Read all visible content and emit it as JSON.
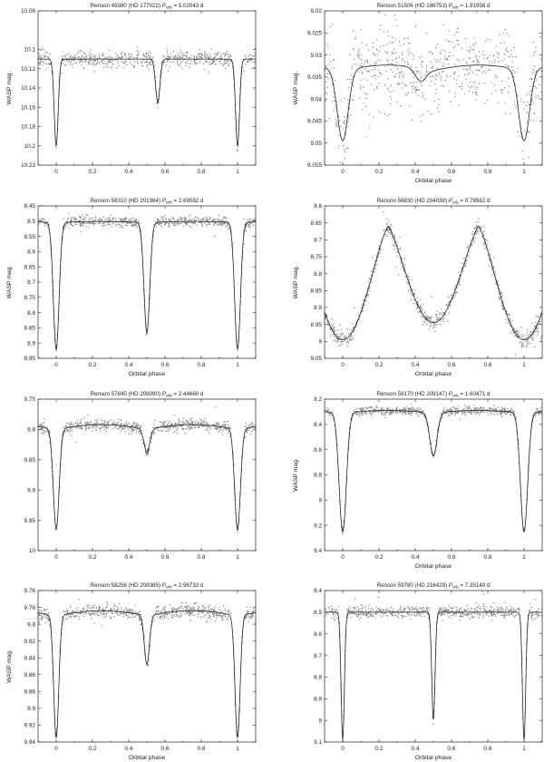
{
  "chart_data": [
    {
      "type": "scatter",
      "title": "Renson 49380 (HD 177022) P_orb = 5.02043 d",
      "title_main": "Renson 49380 (HD 177022) ",
      "title_p": "P",
      "title_sub": "orb",
      "title_val": " = 5.02043 d",
      "xlabel": "",
      "ylabel": "WASP mag.",
      "xlim": [
        -0.1,
        1.1
      ],
      "ylim": [
        10.06,
        10.22
      ],
      "y_inverted": true,
      "xticks": [
        "0",
        "0.2",
        "0.4",
        "0.6",
        "0.8",
        "1"
      ],
      "yticks": [
        "10.06",
        "10.1",
        "10.12",
        "10.14",
        "10.16",
        "10.18",
        "10.2",
        "10.22"
      ],
      "ytick_values": [
        10.06,
        10.1,
        10.12,
        10.14,
        10.16,
        10.18,
        10.2,
        10.22
      ],
      "model": {
        "base": 10.11,
        "eclipses": [
          [
            0,
            10.2,
            0.011
          ],
          [
            0.56,
            10.155,
            0.012
          ],
          [
            1,
            10.2,
            0.011
          ]
        ],
        "variation": [
          0,
          0
        ]
      },
      "noise": 0.004,
      "npoints": 700
    },
    {
      "type": "scatter",
      "title": "Renson 51506 (HD 186753) P_orb = 1.91956 d",
      "title_main": "Renson 51506 (HD 186753) ",
      "title_p": "P",
      "title_sub": "orb",
      "title_val": " = 1.91956 d",
      "xlabel": "Orbital phase",
      "ylabel": "WASP mag.",
      "xlim": [
        -0.1,
        1.1
      ],
      "ylim": [
        9.02,
        9.055
      ],
      "y_inverted": true,
      "xticks": [
        "0",
        "0.2",
        "0.4",
        "0.6",
        "0.8",
        "1"
      ],
      "yticks": [
        "9.02",
        "9.025",
        "9.03",
        "9.035",
        "9.04",
        "9.045",
        "9.05",
        "9.055"
      ],
      "ytick_values": [
        9.02,
        9.025,
        9.03,
        9.035,
        9.04,
        9.045,
        9.05,
        9.055
      ],
      "model": {
        "base": 9.0335,
        "eclipses": [
          [
            0,
            9.0495,
            0.03
          ],
          [
            0.43,
            9.0365,
            0.03
          ],
          [
            1,
            9.0495,
            0.03
          ]
        ],
        "variation": [
          -0.0012,
          0
        ]
      },
      "noise": 0.0045,
      "npoints": 700
    },
    {
      "type": "scatter",
      "title": "Renson 56310 (HD 201964) P_orb = 2.69592 d",
      "title_main": "Renson 56310 (HD 201964) ",
      "title_p": "P",
      "title_sub": "orb",
      "title_val": " = 2.69592 d",
      "xlabel": "Orbital phase",
      "ylabel": "WASP mag.",
      "xlim": [
        -0.1,
        1.1
      ],
      "ylim": [
        8.45,
        8.95
      ],
      "y_inverted": true,
      "xticks": [
        "0",
        "0.2",
        "0.4",
        "0.6",
        "0.8",
        "1"
      ],
      "yticks": [
        "8.45",
        "8.5",
        "8.55",
        "8.6",
        "8.65",
        "8.7",
        "8.75",
        "8.8",
        "8.85",
        "8.9",
        "8.95"
      ],
      "ytick_values": [
        8.45,
        8.5,
        8.55,
        8.6,
        8.65,
        8.7,
        8.75,
        8.8,
        8.85,
        8.9,
        8.95
      ],
      "model": {
        "base": 8.505,
        "eclipses": [
          [
            0,
            8.92,
            0.016
          ],
          [
            0.5,
            8.865,
            0.016
          ],
          [
            1,
            8.92,
            0.016
          ]
        ],
        "variation": [
          -0.004,
          0
        ]
      },
      "noise": 0.008,
      "npoints": 750
    },
    {
      "type": "scatter",
      "title": "Renson 56830 (HD 204038) P_orb = 0.78562 d",
      "title_main": "Renson 56830 (HD 204038) ",
      "title_p": "P",
      "title_sub": "orb",
      "title_val": " = 0.78562 d",
      "xlabel": "Orbital phase",
      "ylabel": "WASP mag.",
      "xlim": [
        -0.1,
        1.1
      ],
      "ylim": [
        8.6,
        9.05
      ],
      "y_inverted": true,
      "xticks": [
        "0",
        "0.2",
        "0.4",
        "0.6",
        "0.8",
        "1"
      ],
      "yticks": [
        "8.6",
        "8.65",
        "8.7",
        "8.75",
        "8.8",
        "8.85",
        "8.9",
        "8.95",
        "9",
        "9.05"
      ],
      "ytick_values": [
        8.6,
        8.65,
        8.7,
        8.75,
        8.8,
        8.85,
        8.9,
        8.95,
        9,
        9.05
      ],
      "model": {
        "base": 8.66,
        "eclipses": [],
        "variation": [
          0,
          0
        ],
        "contact": {
          "min_primary": 8.995,
          "min_secondary": 8.945,
          "max": 8.66
        }
      },
      "noise": 0.012,
      "npoints": 800
    },
    {
      "type": "scatter",
      "title": "Renson 57845 (HD 208090) P_orb = 2.44660 d",
      "title_main": "Renson 57845 (HD 208090) ",
      "title_p": "P",
      "title_sub": "orb",
      "title_val": " = 2.44660 d",
      "xlabel": "",
      "ylabel": "",
      "xlim": [
        -0.1,
        1.1
      ],
      "ylim": [
        9.75,
        10.0
      ],
      "y_inverted": true,
      "xticks": [
        "0",
        "0.2",
        "0.4",
        "0.6",
        "0.8",
        "1"
      ],
      "yticks": [
        "9.75",
        "9.8",
        "9.85",
        "9.9",
        "9.95",
        "10"
      ],
      "ytick_values": [
        9.75,
        9.8,
        9.85,
        9.9,
        9.95,
        10.0
      ],
      "model": {
        "base": 9.8,
        "eclipses": [
          [
            0,
            9.965,
            0.016
          ],
          [
            0.5,
            9.838,
            0.016
          ],
          [
            1,
            9.965,
            0.016
          ]
        ],
        "variation": [
          -0.008,
          0
        ]
      },
      "noise": 0.005,
      "npoints": 750
    },
    {
      "type": "scatter",
      "title": "Renson 58170 (HD 209147) P_orb = 1.60471 d",
      "title_main": "Renson 58170 (HD 209147) ",
      "title_p": "P",
      "title_sub": "orb",
      "title_val": " = 1.60471 d",
      "xlabel": "Orbital phase",
      "ylabel": "WASP mag.",
      "xlim": [
        -0.1,
        1.1
      ],
      "ylim": [
        8.2,
        9.4
      ],
      "y_inverted": true,
      "xticks": [
        "0",
        "0.2",
        "0.4",
        "0.6",
        "0.8",
        "1"
      ],
      "yticks": [
        "8.2",
        "8.4",
        "8.6",
        "8.8",
        "9",
        "9.2",
        "9.4"
      ],
      "ytick_values": [
        8.2,
        8.4,
        8.6,
        8.8,
        9.0,
        9.2,
        9.4
      ],
      "model": {
        "base": 8.31,
        "eclipses": [
          [
            0,
            9.25,
            0.02
          ],
          [
            0.5,
            8.65,
            0.02
          ],
          [
            1,
            9.25,
            0.02
          ]
        ],
        "variation": [
          -0.02,
          0
        ]
      },
      "noise": 0.016,
      "npoints": 750
    },
    {
      "type": "scatter",
      "title": "Renson 58256 (HD 209385) P_orb = 2.96733 d",
      "title_main": "Renson 58256 (HD 209385) ",
      "title_p": "P",
      "title_sub": "orb",
      "title_val": " = 2.96733 d",
      "xlabel": "Orbital phase",
      "ylabel": "WASP mag.",
      "xlim": [
        -0.1,
        1.1
      ],
      "ylim": [
        9.76,
        9.94
      ],
      "y_inverted": true,
      "xticks": [
        "0",
        "0.2",
        "0.4",
        "0.6",
        "0.8",
        "1"
      ],
      "yticks": [
        "9.76",
        "9.78",
        "9.8",
        "9.82",
        "9.84",
        "9.86",
        "9.88",
        "9.9",
        "9.92",
        "9.94"
      ],
      "ytick_values": [
        9.76,
        9.78,
        9.8,
        9.82,
        9.84,
        9.86,
        9.88,
        9.9,
        9.92,
        9.94
      ],
      "model": {
        "base": 9.79,
        "eclipses": [
          [
            0,
            9.935,
            0.014
          ],
          [
            0.5,
            9.848,
            0.014
          ],
          [
            1,
            9.935,
            0.014
          ]
        ],
        "variation": [
          -0.006,
          0
        ]
      },
      "noise": 0.004,
      "npoints": 750
    },
    {
      "type": "scatter",
      "title": "Renson 59780 (HD 216429) P_orb = 7.35140 d",
      "title_main": "Renson 59780 (HD 216429) ",
      "title_p": "P",
      "title_sub": "orb",
      "title_val": " = 7.35140 d",
      "xlabel": "Orbital phase",
      "ylabel": "",
      "xlim": [
        -0.1,
        1.1
      ],
      "ylim": [
        8.4,
        9.1
      ],
      "y_inverted": true,
      "xticks": [
        "0",
        "0.2",
        "0.4",
        "0.6",
        "0.8",
        "1"
      ],
      "yticks": [
        "8.4",
        "8.5",
        "8.6",
        "8.7",
        "8.8",
        "8.9",
        "9",
        "9.1"
      ],
      "ytick_values": [
        8.4,
        8.5,
        8.6,
        8.7,
        8.8,
        8.9,
        9.0,
        9.1
      ],
      "model": {
        "base": 8.5,
        "eclipses": [
          [
            0,
            9.09,
            0.009
          ],
          [
            0.5,
            8.995,
            0.009
          ],
          [
            1,
            9.09,
            0.009
          ]
        ],
        "variation": [
          0,
          0
        ]
      },
      "noise": 0.014,
      "npoints": 750
    }
  ]
}
